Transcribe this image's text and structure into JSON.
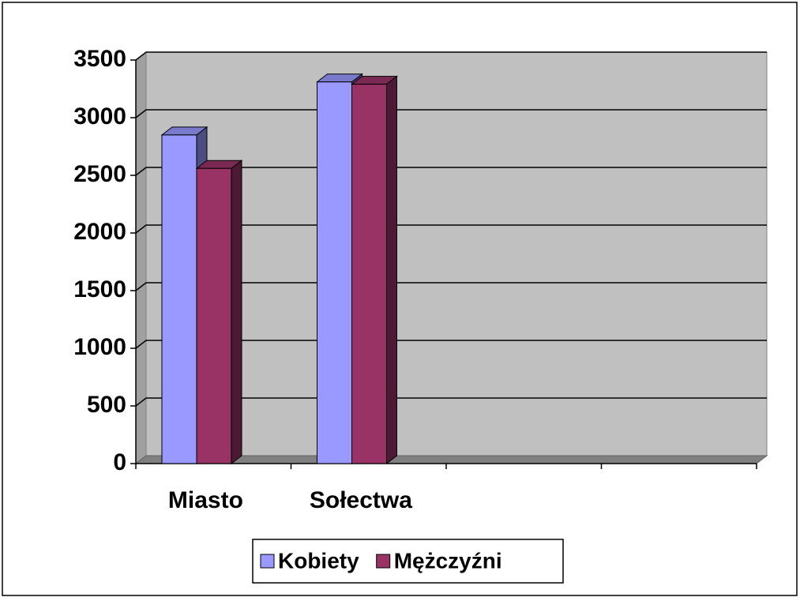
{
  "chart_data": {
    "type": "bar3d",
    "categories": [
      "Miasto",
      "Sołectwa",
      null,
      null
    ],
    "series": [
      {
        "name": "Kobiety",
        "color": "#9999ff",
        "values": [
          2850,
          3310,
          null,
          null
        ]
      },
      {
        "name": "Mężczyźni",
        "color": "#993366",
        "values": [
          2560,
          3290,
          null,
          null
        ]
      }
    ],
    "ylim": [
      0,
      3500
    ],
    "yticks": [
      0,
      500,
      1000,
      1500,
      2000,
      2500,
      3000,
      3500
    ],
    "grid": true,
    "wall_color": "#c0c0c0",
    "legend": "bottom"
  }
}
